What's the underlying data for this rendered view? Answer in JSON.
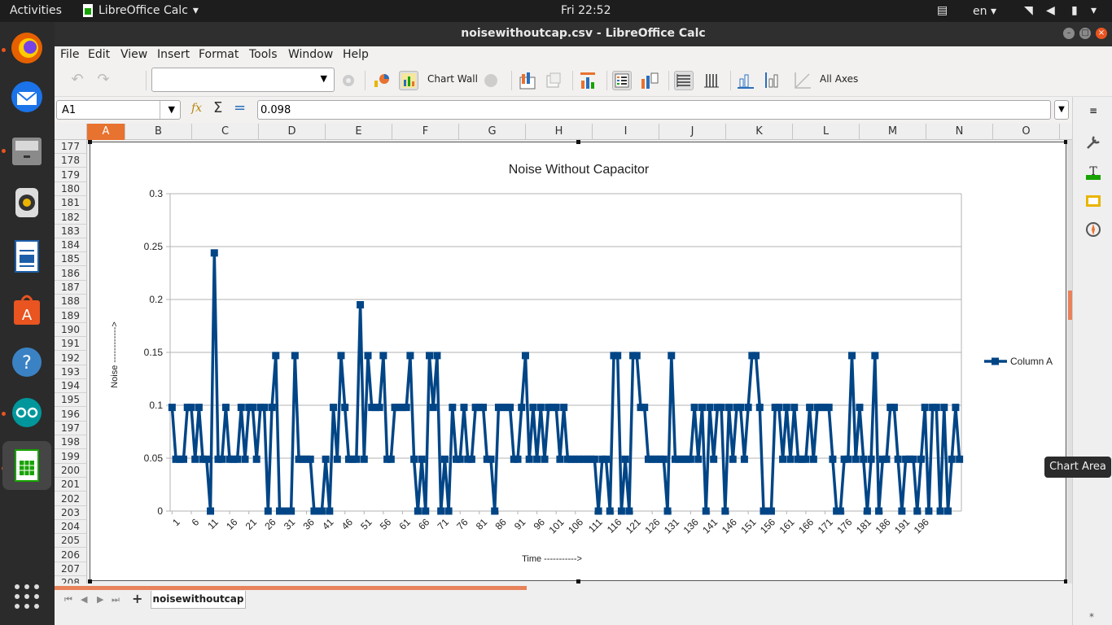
{
  "system": {
    "activities": "Activities",
    "app_menu": "LibreOffice Calc",
    "clock": "Fri 22:52",
    "language": "en"
  },
  "window": {
    "title": "noisewithoutcap.csv - LibreOffice Calc"
  },
  "menu": [
    "File",
    "Edit",
    "View",
    "Insert",
    "Format",
    "Tools",
    "Window",
    "Help"
  ],
  "toolbar": {
    "chart_element_select": "",
    "chart_wall_label": "Chart Wall",
    "all_axes_label": "All Axes"
  },
  "formula": {
    "name_box": "A1",
    "value": "0.098"
  },
  "columns": [
    "A",
    "B",
    "C",
    "D",
    "E",
    "F",
    "G",
    "H",
    "I",
    "J",
    "K",
    "L",
    "M",
    "N",
    "O"
  ],
  "rows": [
    177,
    178,
    179,
    180,
    181,
    182,
    183,
    184,
    185,
    186,
    187,
    188,
    189,
    190,
    191,
    192,
    193,
    194,
    195,
    196,
    197,
    198,
    199,
    200,
    201,
    202,
    203,
    204,
    205,
    206,
    207,
    208
  ],
  "sheet": {
    "tab_name": "noisewithoutcap"
  },
  "tooltip": "Chart Area",
  "colors": {
    "accent": "#e8722f",
    "series": "#004586"
  },
  "chart_data": {
    "type": "line",
    "title": "Noise Without Capacitor",
    "xlabel": "Time ----------->",
    "ylabel": "Noise ------------>",
    "ylim": [
      0,
      0.3
    ],
    "yticks": [
      0,
      0.05,
      0.1,
      0.15,
      0.2,
      0.25,
      0.3
    ],
    "xtick_labels": [
      "1",
      "6",
      "11",
      "16",
      "21",
      "26",
      "31",
      "36",
      "41",
      "46",
      "51",
      "56",
      "61",
      "66",
      "71",
      "76",
      "81",
      "86",
      "91",
      "96",
      "101",
      "106",
      "111",
      "116",
      "121",
      "126",
      "131",
      "136",
      "141",
      "146",
      "151",
      "156",
      "161",
      "166",
      "171",
      "176",
      "181",
      "186",
      "191",
      "196"
    ],
    "grid": true,
    "legend_position": "right",
    "series": [
      {
        "name": "Column A",
        "x_start": 1,
        "values": [
          0.098,
          0.049,
          0.049,
          0.049,
          0.098,
          0.098,
          0.049,
          0.098,
          0.049,
          0.049,
          0,
          0.244,
          0.049,
          0.049,
          0.098,
          0.049,
          0.049,
          0.049,
          0.098,
          0.049,
          0.098,
          0.098,
          0.049,
          0.098,
          0.098,
          0,
          0.098,
          0.147,
          0,
          0,
          0,
          0,
          0.147,
          0.049,
          0.049,
          0.049,
          0.049,
          0,
          0,
          0,
          0.049,
          0,
          0.098,
          0.049,
          0.147,
          0.098,
          0.049,
          0.049,
          0.049,
          0.195,
          0.049,
          0.147,
          0.098,
          0.098,
          0.098,
          0.147,
          0.049,
          0.049,
          0.098,
          0.098,
          0.098,
          0.098,
          0.147,
          0.049,
          0,
          0.049,
          0,
          0.147,
          0.098,
          0.147,
          0,
          0.049,
          0,
          0.098,
          0.049,
          0.049,
          0.098,
          0.049,
          0.049,
          0.098,
          0.098,
          0.098,
          0.049,
          0.049,
          0,
          0.098,
          0.098,
          0.098,
          0.098,
          0.049,
          0.049,
          0.098,
          0.147,
          0.049,
          0.098,
          0.049,
          0.098,
          0.049,
          0.098,
          0.098,
          0.098,
          0.049,
          0.098,
          0.049,
          0.049,
          0.049,
          0.049,
          0.049,
          0.049,
          0.049,
          0.049,
          0,
          0.049,
          0.049,
          0,
          0.147,
          0.147,
          0,
          0.049,
          0,
          0.147,
          0.147,
          0.098,
          0.098,
          0.049,
          0.049,
          0.049,
          0.049,
          0.049,
          0,
          0.147,
          0.049,
          0.049,
          0.049,
          0.049,
          0.049,
          0.098,
          0.049,
          0.098,
          0,
          0.098,
          0.049,
          0.098,
          0.098,
          0,
          0.098,
          0.049,
          0.098,
          0.098,
          0.049,
          0.098,
          0.147,
          0.147,
          0.098,
          0,
          0,
          0,
          0.098,
          0.098,
          0.049,
          0.098,
          0.049,
          0.098,
          0.049,
          0.049,
          0.049,
          0.098,
          0.049,
          0.098,
          0.098,
          0.098,
          0.098,
          0.049,
          0,
          0,
          0.049,
          0.049,
          0.147,
          0.049,
          0.098,
          0.049,
          0,
          0.049,
          0.147,
          0,
          0.049,
          0.049,
          0.098,
          0.098,
          0.049,
          0,
          0.049,
          0.049,
          0.049,
          0,
          0.049,
          0.098,
          0,
          0.098,
          0.098,
          0,
          0.098,
          0,
          0.049,
          0.098,
          0.049
        ]
      }
    ]
  }
}
